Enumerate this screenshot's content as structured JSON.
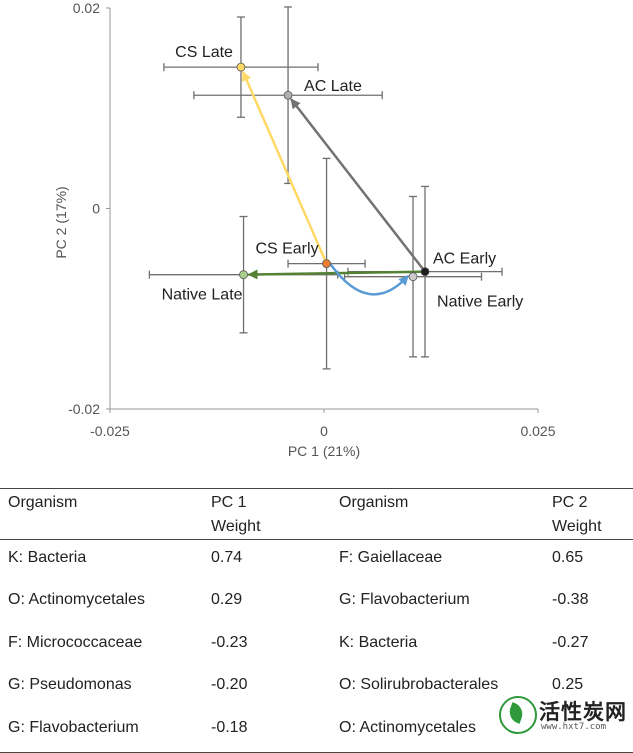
{
  "chart_data": {
    "type": "scatter",
    "xlabel": "PC 1 (21%)",
    "ylabel": "PC 2 (17%)",
    "xlim": [
      -0.025,
      0.025
    ],
    "ylim": [
      -0.02,
      0.02
    ],
    "xticks": [
      "-0.025",
      "0",
      "0.025"
    ],
    "yticks": [
      "-0.02",
      "0",
      "0.02"
    ],
    "points": [
      {
        "name": "CS Late",
        "x": -0.0097,
        "y": 0.0141,
        "xerr": 0.009,
        "yerr": 0.005,
        "color": "#ffd966",
        "label_pos": "upper-left"
      },
      {
        "name": "AC Late",
        "x": -0.0042,
        "y": 0.0113,
        "xerr": 0.011,
        "yerr": 0.0088,
        "color": "#b0b0b0",
        "label_pos": "right"
      },
      {
        "name": "CS Early",
        "x": 0.0003,
        "y": -0.0055,
        "xerr": 0.0045,
        "yerr": 0.0105,
        "color": "#ed7d31",
        "label_pos": "upper-left"
      },
      {
        "name": "AC Early",
        "x": 0.0118,
        "y": -0.0063,
        "xerr": 0.009,
        "yerr": 0.0085,
        "color": "#1f1f1f",
        "label_pos": "upper-right"
      },
      {
        "name": "Native Early",
        "x": 0.0104,
        "y": -0.0068,
        "xerr": 0.008,
        "yerr": 0.008,
        "color": "#cccccc",
        "label_pos": "lower-right"
      },
      {
        "name": "Native Late",
        "x": -0.0094,
        "y": -0.0066,
        "xerr": 0.011,
        "yerr": 0.0058,
        "color": "#a9d18e",
        "label_pos": "lower-left"
      }
    ],
    "arrows": [
      {
        "from": "CS Early",
        "to": "CS Late",
        "color": "#ffd966"
      },
      {
        "from": "AC Early",
        "to": "AC Late",
        "color": "#767171"
      },
      {
        "from": "AC Early",
        "to": "Native Late",
        "color": "#548235"
      },
      {
        "from": "CS Early",
        "to": "Native Early",
        "color": "#5b9bd5",
        "curved": true
      }
    ]
  },
  "table": {
    "headers": [
      "Organism",
      "PC 1",
      "Weight",
      "Organism",
      "PC 2",
      "Weight"
    ],
    "rows": [
      {
        "org1": "K: Bacteria",
        "w1": "0.74",
        "org2": "F: Gaiellaceae",
        "w2": "0.65"
      },
      {
        "org1": "O: Actinomycetales",
        "w1": "0.29",
        "org2": "G: Flavobacterium",
        "w2": "-0.38"
      },
      {
        "org1": "F: Micrococcaceae",
        "w1": "-0.23",
        "org2": "K: Bacteria",
        "w2": "-0.27"
      },
      {
        "org1": "G: Pseudomonas",
        "w1": "-0.20",
        "org2": "O: Solirubrobacterales",
        "w2": "0.25"
      },
      {
        "org1": "G: Flavobacterium",
        "w1": "-0.18",
        "org2": "O: Actinomycetales",
        "w2": ""
      }
    ]
  },
  "watermark": {
    "brand": "活性炭网",
    "site": "www.hxt7.com",
    "icon": "leaf-logo-icon"
  }
}
